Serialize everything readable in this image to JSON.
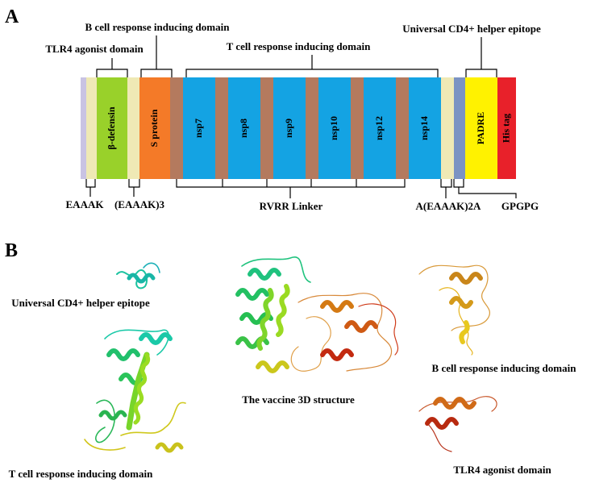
{
  "panels": {
    "a": "A",
    "b": "B"
  },
  "construct": {
    "top_labels": {
      "b_cell": "B cell response inducing domain",
      "tlr4": "TLR4 agonist domain",
      "t_cell": "T cell response inducing domain",
      "cd4": "Universal CD4+ helper epitope"
    },
    "bottom_labels": {
      "eaaak": "EAAAK",
      "eaaak3": "(EAAAK)3",
      "rvrr": "RVRR Linker",
      "a_eaaak_2a": "A(EAAAK)2A",
      "gpgpg": "GPGPG"
    },
    "segments": [
      {
        "id": "start",
        "color": "#c9c3e3",
        "text": ""
      },
      {
        "id": "eaaak",
        "color": "#efe9b5",
        "text": ""
      },
      {
        "id": "bdefensin",
        "color": "#99d12a",
        "text": "β-defensin",
        "text_color": "#000000"
      },
      {
        "id": "eaaak3",
        "color": "#efe9b5",
        "text": ""
      },
      {
        "id": "sprotein",
        "color": "#f47a28",
        "text": "S protein",
        "text_color": "#000000"
      },
      {
        "id": "rvrr1",
        "color": "#b47a5e",
        "text": ""
      },
      {
        "id": "nsp7",
        "color": "#14a3e3",
        "text": "nsp7",
        "text_color": "#000000"
      },
      {
        "id": "rvrr2",
        "color": "#b47a5e",
        "text": ""
      },
      {
        "id": "nsp8",
        "color": "#14a3e3",
        "text": "nsp8",
        "text_color": "#000000"
      },
      {
        "id": "rvrr3",
        "color": "#b47a5e",
        "text": ""
      },
      {
        "id": "nsp9",
        "color": "#14a3e3",
        "text": "nsp9",
        "text_color": "#000000"
      },
      {
        "id": "rvrr4",
        "color": "#b47a5e",
        "text": ""
      },
      {
        "id": "nsp10",
        "color": "#14a3e3",
        "text": "nsp10",
        "text_color": "#000000"
      },
      {
        "id": "rvrr5",
        "color": "#b47a5e",
        "text": ""
      },
      {
        "id": "nsp12",
        "color": "#14a3e3",
        "text": "nsp12",
        "text_color": "#000000"
      },
      {
        "id": "rvrr6",
        "color": "#b47a5e",
        "text": ""
      },
      {
        "id": "nsp14",
        "color": "#14a3e3",
        "text": "nsp14",
        "text_color": "#000000"
      },
      {
        "id": "aeaaak2a",
        "color": "#efe9b5",
        "text": ""
      },
      {
        "id": "gpgpg",
        "color": "#7b93c3",
        "text": ""
      },
      {
        "id": "padre",
        "color": "#fff200",
        "text": "PADRE",
        "text_color": "#000000"
      },
      {
        "id": "histag",
        "color": "#e8212a",
        "text": "His tag",
        "text_color": "#000000"
      }
    ]
  },
  "structures": {
    "cd4": "Universal CD4+ helper epitope",
    "vaccine": "The vaccine 3D structure",
    "t_cell": "T cell response inducing domain",
    "b_cell": "B cell response inducing domain",
    "tlr4": "TLR4 agonist domain"
  }
}
